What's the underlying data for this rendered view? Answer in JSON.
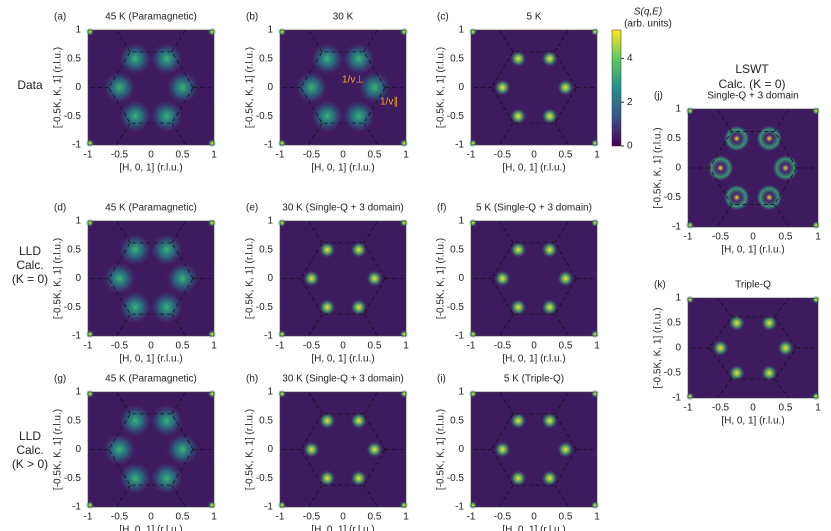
{
  "panels": [
    {
      "label": "(a)",
      "title": "45 K (Paramagnetic)"
    },
    {
      "label": "(b)",
      "title": "30 K"
    },
    {
      "label": "(c)",
      "title": "5 K"
    },
    {
      "label": "(d)",
      "title": "45 K (Paramagnetic)"
    },
    {
      "label": "(e)",
      "title": "30 K (Single-Q + 3 domain)"
    },
    {
      "label": "(f)",
      "title": "5 K (Single-Q + 3 domain)"
    },
    {
      "label": "(g)",
      "title": "45 K (Paramagnetic)"
    },
    {
      "label": "(h)",
      "title": "30 K (Single-Q + 3 domain)"
    },
    {
      "label": "(i)",
      "title": "5 K (Triple-Q)"
    },
    {
      "label": "(j)",
      "title": "Single-Q + 3 domain"
    },
    {
      "label": "(k)",
      "title": "Triple-Q"
    }
  ],
  "row_labels": [
    [
      "Data"
    ],
    [
      "LLD",
      "Calc.",
      "(K = 0)"
    ],
    [
      "LLD",
      "Calc.",
      "(K > 0)"
    ]
  ],
  "side_heading": [
    "LSWT",
    "Calc. (K = 0)"
  ],
  "x_axis_label": "[H, 0, 1] (r.l.u.)",
  "y_axis_label": "[-0.5K, K, 1] (r.l.u.)",
  "x_ticks": [
    "-1",
    "-0.5",
    "0",
    "0.5",
    "1"
  ],
  "y_ticks": [
    "1",
    "0.5",
    "0",
    "-0.5",
    "-1"
  ],
  "annotations": [
    "1/v⊥",
    "1/v∥"
  ],
  "colorbar": {
    "label": "S(q,E)",
    "units": "(arb. units)",
    "ticks": [
      4,
      2,
      0
    ]
  }
}
